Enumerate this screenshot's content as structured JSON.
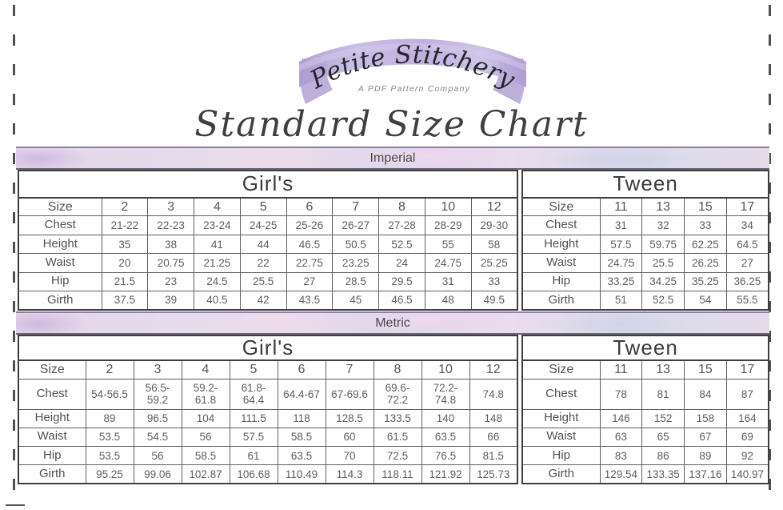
{
  "logo": {
    "brand": "Petite Stitchery",
    "tagline": "A PDF Pattern Company"
  },
  "title": "Standard Size Chart",
  "colors": {
    "ribbon_lavender": "#b7a8da",
    "band_pink": "#ecdcea",
    "band_lavender": "#dcd7ea",
    "band_border_purple": "#8e80a6"
  },
  "sections": [
    {
      "name": "Imperial",
      "tables": [
        {
          "title": "Girl's",
          "size_label": "Size",
          "sizes": [
            "2",
            "3",
            "4",
            "5",
            "6",
            "7",
            "8",
            "10",
            "12"
          ],
          "rows": [
            {
              "label": "Chest",
              "values": [
                "21-22",
                "22-23",
                "23-24",
                "24-25",
                "25-26",
                "26-27",
                "27-28",
                "28-29",
                "29-30"
              ]
            },
            {
              "label": "Height",
              "values": [
                "35",
                "38",
                "41",
                "44",
                "46.5",
                "50.5",
                "52.5",
                "55",
                "58"
              ]
            },
            {
              "label": "Waist",
              "values": [
                "20",
                "20.75",
                "21.25",
                "22",
                "22.75",
                "23.25",
                "24",
                "24.75",
                "25.25"
              ]
            },
            {
              "label": "Hip",
              "values": [
                "21.5",
                "23",
                "24.5",
                "25.5",
                "27",
                "28.5",
                "29.5",
                "31",
                "33"
              ]
            },
            {
              "label": "Girth",
              "values": [
                "37.5",
                "39",
                "40.5",
                "42",
                "43.5",
                "45",
                "46.5",
                "48",
                "49.5"
              ]
            }
          ]
        },
        {
          "title": "Tween",
          "size_label": "Size",
          "sizes": [
            "11",
            "13",
            "15",
            "17"
          ],
          "rows": [
            {
              "label": "Chest",
              "values": [
                "31",
                "32",
                "33",
                "34"
              ]
            },
            {
              "label": "Height",
              "values": [
                "57.5",
                "59.75",
                "62.25",
                "64.5"
              ]
            },
            {
              "label": "Waist",
              "values": [
                "24.75",
                "25.5",
                "26.25",
                "27"
              ]
            },
            {
              "label": "Hip",
              "values": [
                "33.25",
                "34.25",
                "35.25",
                "36.25"
              ]
            },
            {
              "label": "Girth",
              "values": [
                "51",
                "52.5",
                "54",
                "55.5"
              ]
            }
          ]
        }
      ]
    },
    {
      "name": "Metric",
      "tables": [
        {
          "title": "Girl's",
          "size_label": "Size",
          "sizes": [
            "2",
            "3",
            "4",
            "5",
            "6",
            "7",
            "8",
            "10",
            "12"
          ],
          "rows": [
            {
              "label": "Chest",
              "values": [
                "54-56.5",
                "56.5-59.2",
                "59.2-61.8",
                "61.8-64.4",
                "64.4-67",
                "67-69.6",
                "69.6-72.2",
                "72.2-74.8",
                "74.8"
              ]
            },
            {
              "label": "Height",
              "values": [
                "89",
                "96.5",
                "104",
                "111.5",
                "118",
                "128.5",
                "133.5",
                "140",
                "148"
              ]
            },
            {
              "label": "Waist",
              "values": [
                "53.5",
                "54.5",
                "56",
                "57.5",
                "58.5",
                "60",
                "61.5",
                "63.5",
                "66"
              ]
            },
            {
              "label": "Hip",
              "values": [
                "53.5",
                "56",
                "58.5",
                "61",
                "63.5",
                "70",
                "72.5",
                "76.5",
                "81.5"
              ]
            },
            {
              "label": "Girth",
              "values": [
                "95.25",
                "99.06",
                "102.87",
                "106.68",
                "110.49",
                "114.3",
                "118.11",
                "121.92",
                "125.73"
              ]
            }
          ]
        },
        {
          "title": "Tween",
          "size_label": "Size",
          "sizes": [
            "11",
            "13",
            "15",
            "17"
          ],
          "rows": [
            {
              "label": "Chest",
              "values": [
                "78",
                "81",
                "84",
                "87"
              ]
            },
            {
              "label": "Height",
              "values": [
                "146",
                "152",
                "158",
                "164"
              ]
            },
            {
              "label": "Waist",
              "values": [
                "63",
                "65",
                "67",
                "69"
              ]
            },
            {
              "label": "Hip",
              "values": [
                "83",
                "86",
                "89",
                "92"
              ]
            },
            {
              "label": "Girth",
              "values": [
                "129.54",
                "133.35",
                "137.16",
                "140.97"
              ]
            }
          ]
        }
      ]
    }
  ]
}
